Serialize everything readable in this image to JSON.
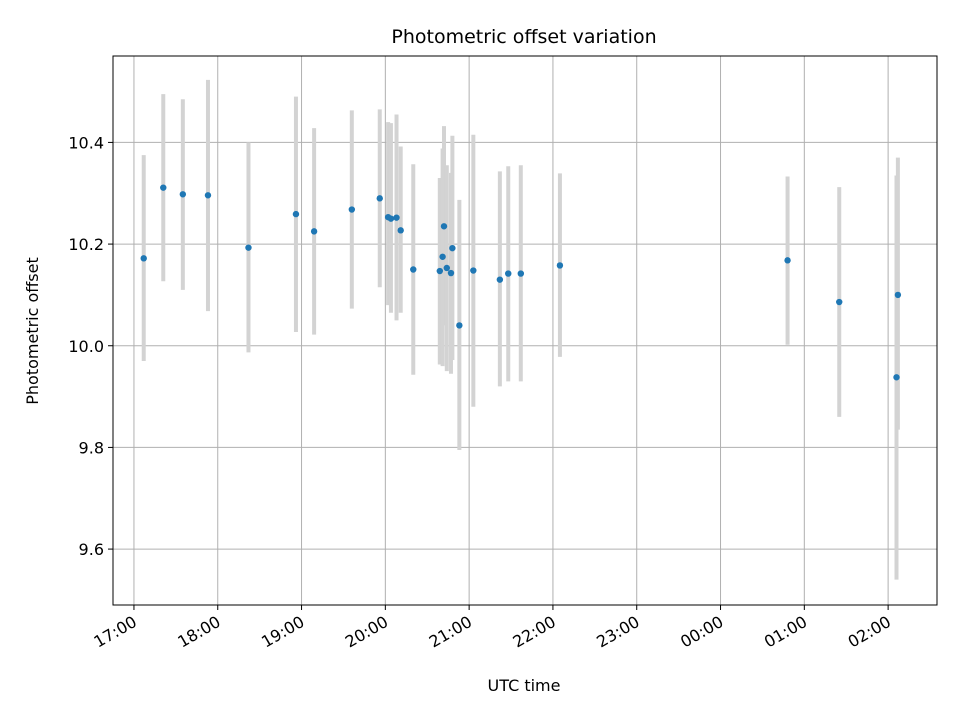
{
  "chart_data": {
    "type": "scatter",
    "title": "Photometric offset variation",
    "xlabel": "UTC time",
    "ylabel": "Photometric offset",
    "xlim": [
      "16:45",
      "02:35"
    ],
    "ylim": [
      9.49,
      10.57
    ],
    "grid": true,
    "x_ticks": [
      "17:00",
      "18:00",
      "19:00",
      "20:00",
      "21:00",
      "22:00",
      "23:00",
      "00:00",
      "01:00",
      "02:00"
    ],
    "y_ticks": [
      9.6,
      9.8,
      10.0,
      10.2,
      10.4
    ],
    "y_tick_labels": [
      "9.6",
      "9.8",
      "10.0",
      "10.2",
      "10.4"
    ],
    "colors": {
      "points": "#1f77b4",
      "error_bars": "#d3d3d3",
      "grid": "#b0b0b0"
    },
    "points": [
      {
        "t": "17:07",
        "y": 10.172,
        "lo": 9.97,
        "hi": 10.375
      },
      {
        "t": "17:21",
        "y": 10.311,
        "lo": 10.127,
        "hi": 10.495
      },
      {
        "t": "17:35",
        "y": 10.298,
        "lo": 10.11,
        "hi": 10.485
      },
      {
        "t": "17:53",
        "y": 10.296,
        "lo": 10.068,
        "hi": 10.523
      },
      {
        "t": "18:22",
        "y": 10.193,
        "lo": 9.987,
        "hi": 10.4
      },
      {
        "t": "18:56",
        "y": 10.259,
        "lo": 10.027,
        "hi": 10.49
      },
      {
        "t": "19:09",
        "y": 10.225,
        "lo": 10.022,
        "hi": 10.428
      },
      {
        "t": "19:36",
        "y": 10.268,
        "lo": 10.073,
        "hi": 10.463
      },
      {
        "t": "19:56",
        "y": 10.29,
        "lo": 10.115,
        "hi": 10.465
      },
      {
        "t": "20:02",
        "y": 10.253,
        "lo": 10.08,
        "hi": 10.44
      },
      {
        "t": "20:04",
        "y": 10.25,
        "lo": 10.065,
        "hi": 10.438
      },
      {
        "t": "20:08",
        "y": 10.252,
        "lo": 10.05,
        "hi": 10.455
      },
      {
        "t": "20:11",
        "y": 10.227,
        "lo": 10.065,
        "hi": 10.392
      },
      {
        "t": "20:20",
        "y": 10.15,
        "lo": 9.943,
        "hi": 10.357
      },
      {
        "t": "20:39",
        "y": 10.147,
        "lo": 9.963,
        "hi": 10.33
      },
      {
        "t": "20:41",
        "y": 10.175,
        "lo": 9.96,
        "hi": 10.388
      },
      {
        "t": "20:42",
        "y": 10.235,
        "lo": 10.04,
        "hi": 10.432
      },
      {
        "t": "20:44",
        "y": 10.153,
        "lo": 9.95,
        "hi": 10.355
      },
      {
        "t": "20:47",
        "y": 10.143,
        "lo": 9.945,
        "hi": 10.34
      },
      {
        "t": "20:48",
        "y": 10.192,
        "lo": 9.972,
        "hi": 10.413
      },
      {
        "t": "20:53",
        "y": 10.04,
        "lo": 9.795,
        "hi": 10.287
      },
      {
        "t": "21:03",
        "y": 10.148,
        "lo": 9.88,
        "hi": 10.415
      },
      {
        "t": "21:22",
        "y": 10.13,
        "lo": 9.92,
        "hi": 10.343
      },
      {
        "t": "21:28",
        "y": 10.142,
        "lo": 9.93,
        "hi": 10.353
      },
      {
        "t": "21:37",
        "y": 10.142,
        "lo": 9.93,
        "hi": 10.355
      },
      {
        "t": "22:05",
        "y": 10.158,
        "lo": 9.978,
        "hi": 10.339
      },
      {
        "t": "00:48",
        "y": 10.168,
        "lo": 10.002,
        "hi": 10.333
      },
      {
        "t": "01:25",
        "y": 10.086,
        "lo": 9.86,
        "hi": 10.312
      },
      {
        "t": "02:06",
        "y": 9.938,
        "lo": 9.54,
        "hi": 10.335
      },
      {
        "t": "02:07",
        "y": 10.1,
        "lo": 9.835,
        "hi": 10.37
      }
    ]
  }
}
